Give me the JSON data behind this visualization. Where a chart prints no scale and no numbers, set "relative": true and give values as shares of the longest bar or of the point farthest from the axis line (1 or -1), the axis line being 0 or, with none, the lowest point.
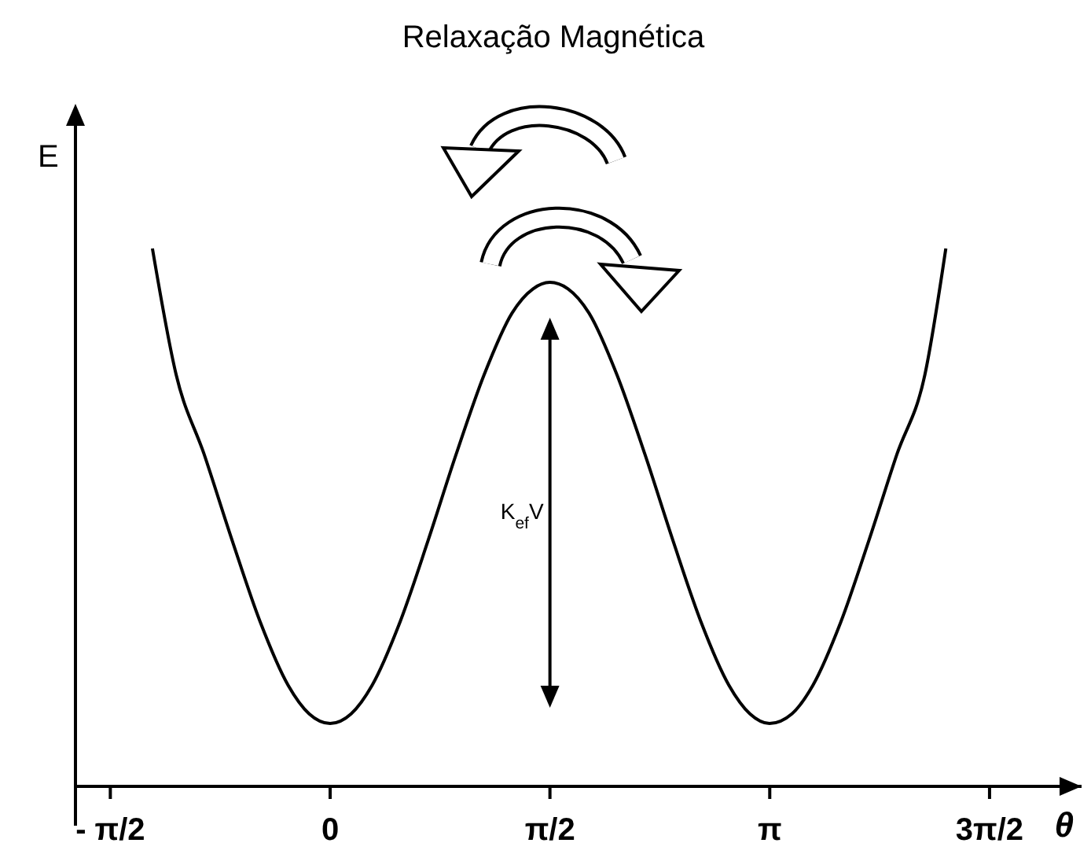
{
  "chart_data": {
    "type": "line",
    "title": "Relaxação Magnética",
    "xlabel": "θ",
    "ylabel": "E",
    "relative": true,
    "xlim": [
      -1.82,
      5.37
    ],
    "xticks": [
      {
        "value": -1.5708,
        "label": "- π/2"
      },
      {
        "value": 0,
        "label": "0"
      },
      {
        "value": 1.5708,
        "label": "π/2"
      },
      {
        "value": 3.1416,
        "label": "π"
      },
      {
        "value": 4.7124,
        "label": "3π/2"
      }
    ],
    "series": [
      {
        "color": "#000000",
        "x": [
          -1.27,
          -1.1,
          -0.9,
          -0.7,
          -0.5,
          -0.3,
          -0.15,
          0,
          0.15,
          0.3,
          0.5,
          0.7,
          0.9,
          1.1,
          1.3,
          1.45,
          1.57,
          1.7,
          1.85,
          2.05,
          2.25,
          2.45,
          2.65,
          2.85,
          3.0,
          3.14,
          3.3,
          3.45,
          3.65,
          3.85,
          4.05,
          4.25,
          4.4
        ],
        "values": [
          1.0,
          0.765,
          0.617,
          0.457,
          0.306,
          0.188,
          0.135,
          0.117,
          0.135,
          0.188,
          0.306,
          0.457,
          0.617,
          0.765,
          0.88,
          0.925,
          0.937,
          0.925,
          0.88,
          0.765,
          0.617,
          0.457,
          0.306,
          0.188,
          0.135,
          0.117,
          0.135,
          0.188,
          0.306,
          0.457,
          0.617,
          0.765,
          1.0
        ]
      }
    ],
    "annotations": [
      "K$_{ef}$V"
    ],
    "grid": false,
    "legend": false,
    "marker": "none",
    "line_style": "solid"
  }
}
